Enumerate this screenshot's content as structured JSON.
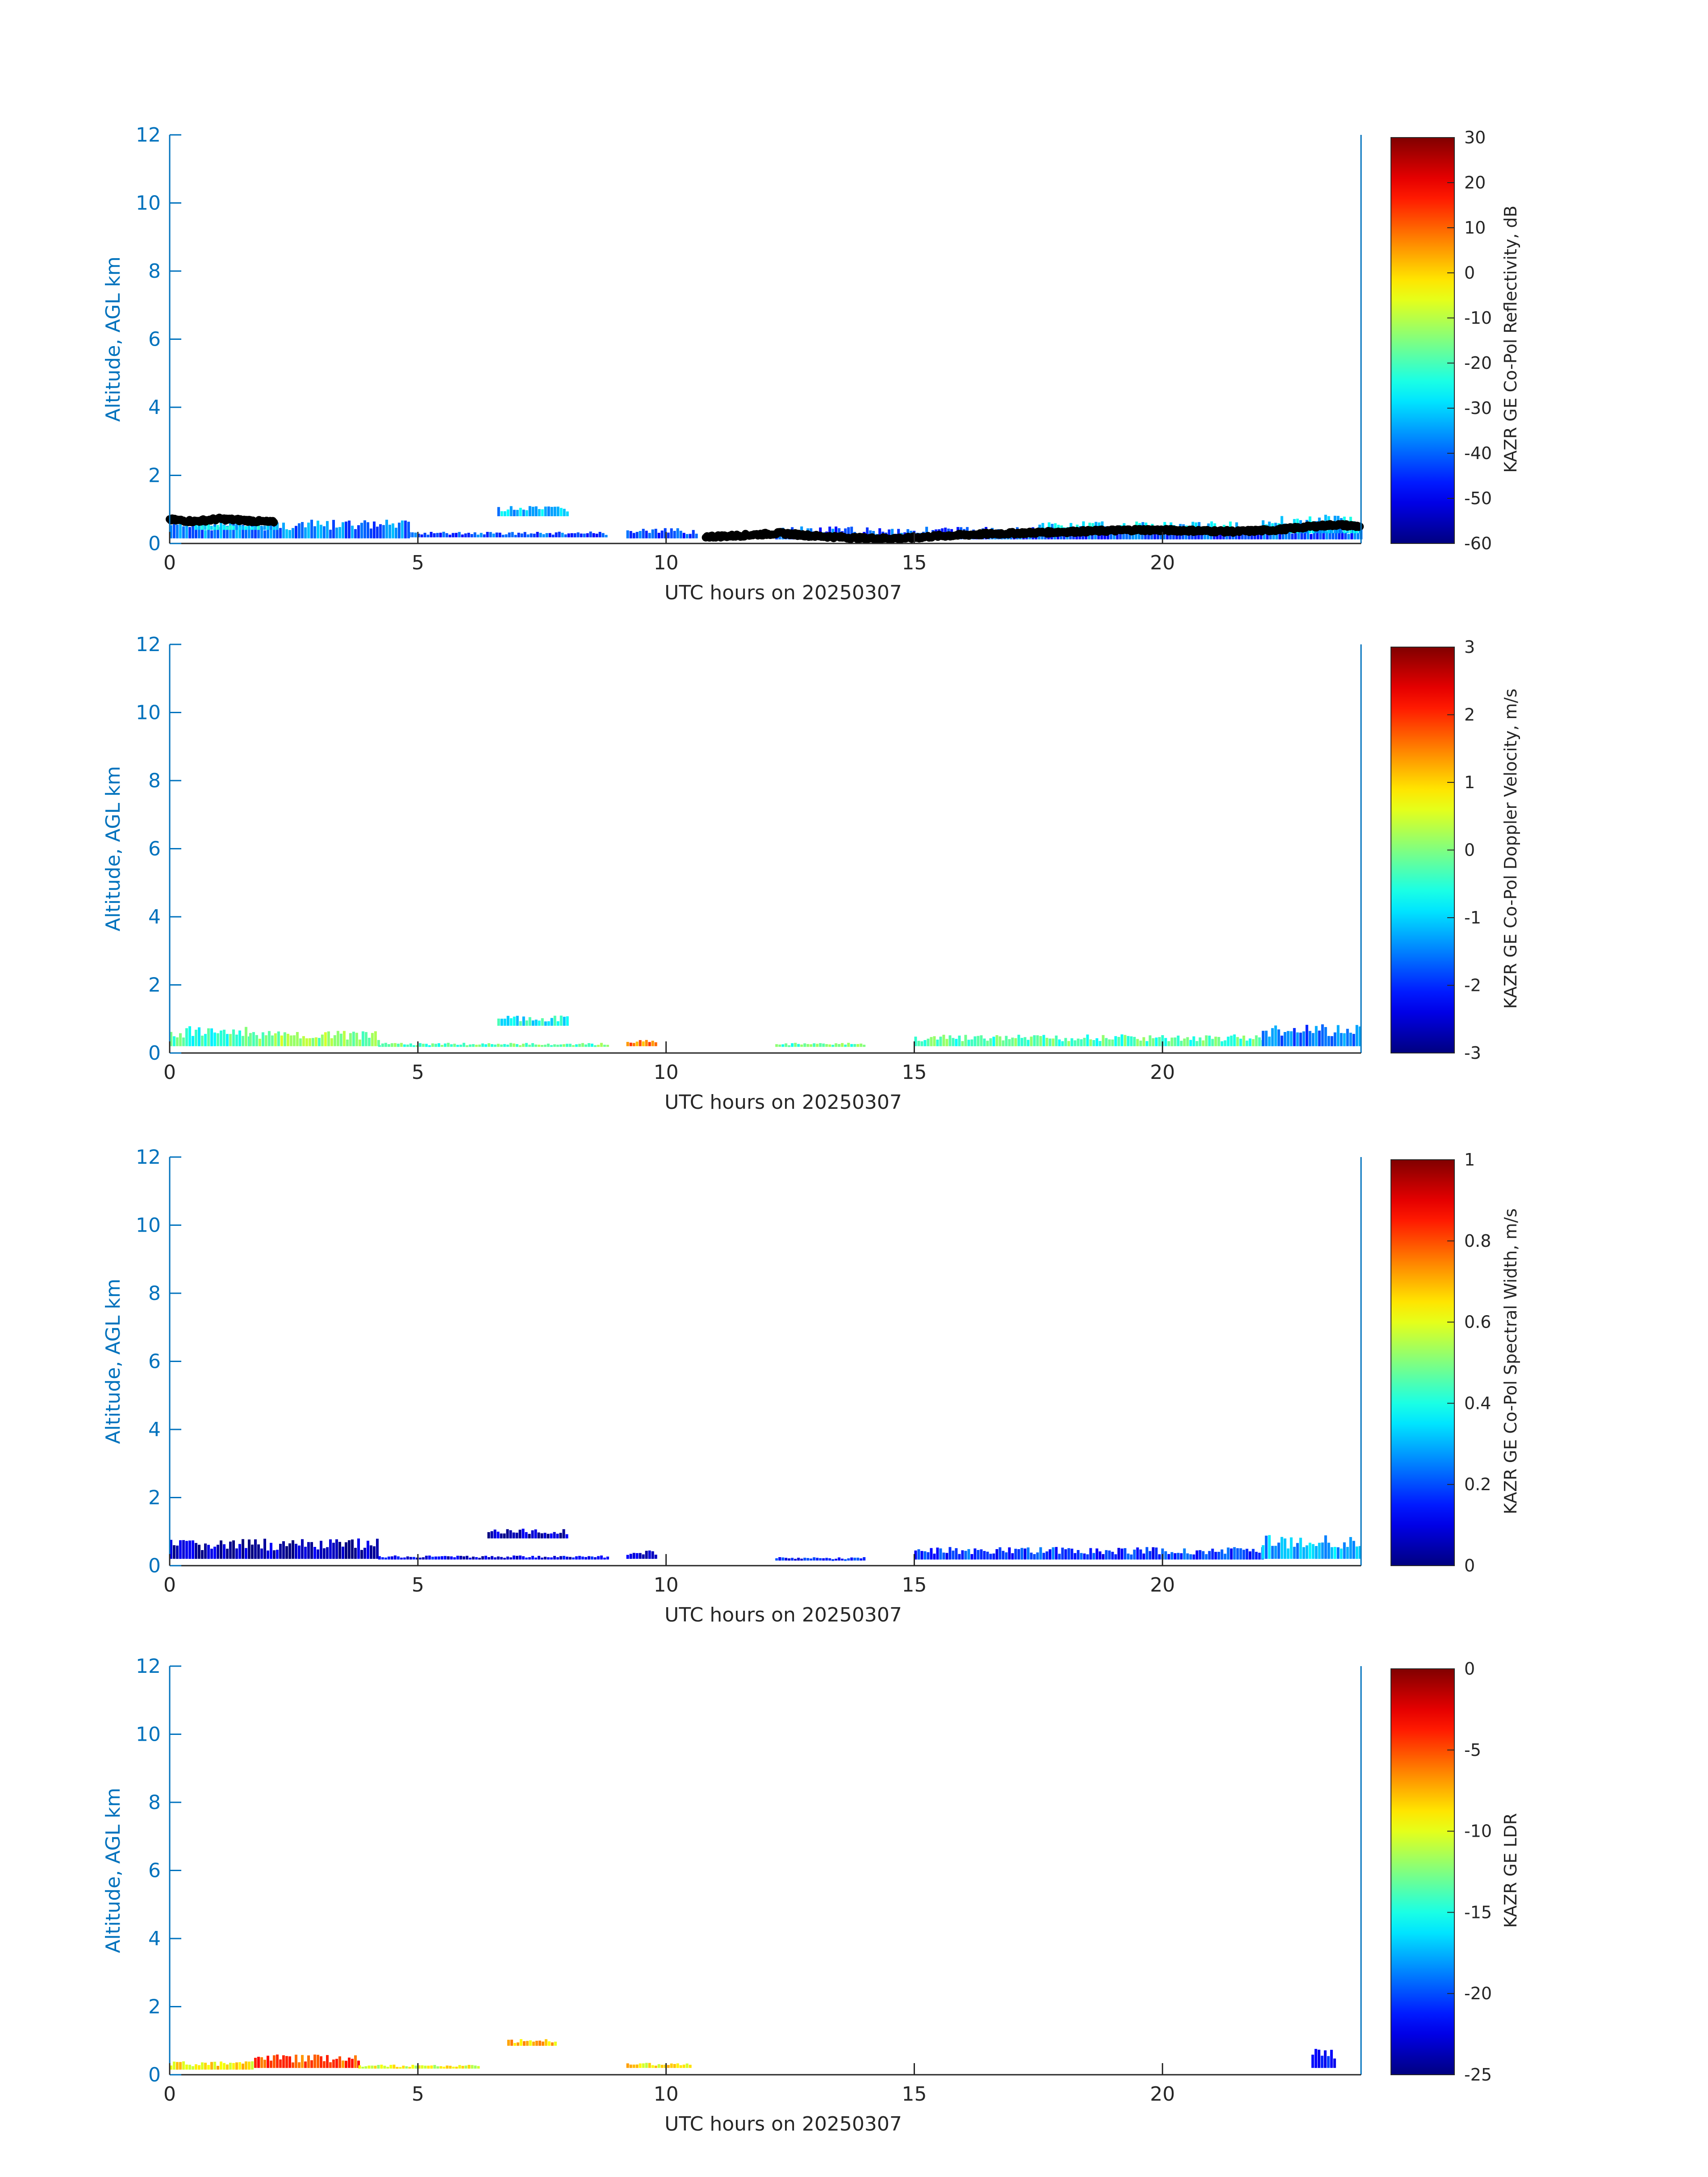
{
  "chart_data": [
    {
      "type": "heatmap",
      "xlabel": "UTC hours on 20250307",
      "ylabel": "Altitude, AGL km",
      "xlim": [
        0,
        24
      ],
      "ylim": [
        0,
        12
      ],
      "xticks": [
        0,
        5,
        10,
        15,
        20
      ],
      "yticks": [
        0,
        2,
        4,
        6,
        8,
        10,
        12
      ],
      "colorbar": {
        "label": "KAZR GE Co-Pol Reflectivity, dB",
        "range": [
          -60,
          30
        ],
        "ticks": [
          30,
          20,
          10,
          0,
          -10,
          -20,
          -30,
          -40,
          -50,
          -60
        ],
        "colormap": "jet"
      },
      "features": [
        {
          "x0": 0,
          "x1": 4.8,
          "y0": 0.15,
          "y1": 0.7,
          "value": -38
        },
        {
          "x0": 0.5,
          "x1": 2.2,
          "y0": 0.4,
          "y1": 0.6,
          "value": -30
        },
        {
          "x0": 4.8,
          "x1": 8.8,
          "y0": 0.18,
          "y1": 0.35,
          "value": -42
        },
        {
          "x0": 6.6,
          "x1": 8.0,
          "y0": 0.8,
          "y1": 1.1,
          "value": -32
        },
        {
          "x0": 9.2,
          "x1": 10.6,
          "y0": 0.15,
          "y1": 0.45,
          "value": -42
        },
        {
          "x0": 12.2,
          "x1": 24,
          "y0": 0.12,
          "y1": 0.5,
          "value": -42
        },
        {
          "x0": 17.5,
          "x1": 21.5,
          "y0": 0.3,
          "y1": 0.65,
          "value": -30
        },
        {
          "x0": 22,
          "x1": 24,
          "y0": 0.3,
          "y1": 0.85,
          "value": -30
        }
      ],
      "cloud_base_points": [
        [
          0,
          0.7
        ],
        [
          0.5,
          0.65
        ],
        [
          1,
          0.72
        ],
        [
          1.5,
          0.68
        ],
        [
          2.1,
          0.62
        ],
        [
          10.8,
          0.2
        ],
        [
          11.3,
          0.22
        ],
        [
          12.3,
          0.3
        ],
        [
          13,
          0.22
        ],
        [
          14,
          0.15
        ],
        [
          14.8,
          0.15
        ],
        [
          15.5,
          0.22
        ],
        [
          16.5,
          0.28
        ],
        [
          17.5,
          0.32
        ],
        [
          18.5,
          0.36
        ],
        [
          19.5,
          0.4
        ],
        [
          20.5,
          0.38
        ],
        [
          21.5,
          0.35
        ],
        [
          22.3,
          0.4
        ],
        [
          23,
          0.5
        ],
        [
          23.5,
          0.55
        ],
        [
          24,
          0.5
        ]
      ]
    },
    {
      "type": "heatmap",
      "xlabel": "UTC hours on 20250307",
      "ylabel": "Altitude, AGL km",
      "xlim": [
        0,
        24
      ],
      "ylim": [
        0,
        12
      ],
      "xticks": [
        0,
        5,
        10,
        15,
        20
      ],
      "yticks": [
        0,
        2,
        4,
        6,
        8,
        10,
        12
      ],
      "colorbar": {
        "label": "KAZR GE Co-Pol Doppler Velocity, m/s",
        "range": [
          -3,
          3
        ],
        "ticks": [
          3,
          2,
          1,
          0,
          -1,
          -2,
          -3
        ],
        "colormap": "jet"
      },
      "features": [
        {
          "x0": 0,
          "x1": 1.6,
          "y0": 0.2,
          "y1": 0.8,
          "value": -0.4
        },
        {
          "x0": 1.6,
          "x1": 4.2,
          "y0": 0.2,
          "y1": 0.65,
          "value": 0.1
        },
        {
          "x0": 4.2,
          "x1": 8.8,
          "y0": 0.18,
          "y1": 0.3,
          "value": -0.2
        },
        {
          "x0": 6.6,
          "x1": 8.0,
          "y0": 0.8,
          "y1": 1.1,
          "value": -0.7
        },
        {
          "x0": 9.2,
          "x1": 9.8,
          "y0": 0.2,
          "y1": 0.4,
          "value": 1.5
        },
        {
          "x0": 12.2,
          "x1": 14.0,
          "y0": 0.18,
          "y1": 0.3,
          "value": -0.2
        },
        {
          "x0": 15,
          "x1": 22,
          "y0": 0.2,
          "y1": 0.55,
          "value": -0.3
        },
        {
          "x0": 22,
          "x1": 24,
          "y0": 0.2,
          "y1": 0.85,
          "value": -1.6
        }
      ]
    },
    {
      "type": "heatmap",
      "xlabel": "UTC hours on 20250307",
      "ylabel": "Altitude, AGL km",
      "xlim": [
        0,
        24
      ],
      "ylim": [
        0,
        12
      ],
      "xticks": [
        0,
        5,
        10,
        15,
        20
      ],
      "yticks": [
        0,
        2,
        4,
        6,
        8,
        10,
        12
      ],
      "colorbar": {
        "label": "KAZR GE Co-Pol Spectral Width, m/s",
        "range": [
          0,
          1
        ],
        "ticks": [
          1,
          0.8,
          0.6,
          0.4,
          0.2,
          0
        ],
        "colormap": "jet"
      },
      "features": [
        {
          "x0": 0,
          "x1": 4.2,
          "y0": 0.2,
          "y1": 0.8,
          "value": 0.05
        },
        {
          "x0": 4.2,
          "x1": 8.8,
          "y0": 0.18,
          "y1": 0.3,
          "value": 0.1
        },
        {
          "x0": 6.4,
          "x1": 8.0,
          "y0": 0.8,
          "y1": 1.1,
          "value": 0.05
        },
        {
          "x0": 9.2,
          "x1": 9.8,
          "y0": 0.2,
          "y1": 0.45,
          "value": 0.05
        },
        {
          "x0": 12.2,
          "x1": 14.0,
          "y0": 0.15,
          "y1": 0.25,
          "value": 0.15
        },
        {
          "x0": 15,
          "x1": 22,
          "y0": 0.18,
          "y1": 0.55,
          "value": 0.18
        },
        {
          "x0": 22,
          "x1": 24,
          "y0": 0.2,
          "y1": 0.9,
          "value": 0.3
        }
      ]
    },
    {
      "type": "heatmap",
      "xlabel": "UTC hours on 20250307",
      "ylabel": "Altitude, AGL km",
      "xlim": [
        0,
        24
      ],
      "ylim": [
        0,
        12
      ],
      "xticks": [
        0,
        5,
        10,
        15,
        20
      ],
      "yticks": [
        0,
        2,
        4,
        6,
        8,
        10,
        12
      ],
      "colorbar": {
        "label": "KAZR GE LDR",
        "range": [
          -25,
          0
        ],
        "ticks": [
          0,
          -5,
          -10,
          -15,
          -20,
          -25
        ],
        "colormap": "jet"
      },
      "features": [
        {
          "x0": 0,
          "x1": 1.7,
          "y0": 0.15,
          "y1": 0.4,
          "value": -9
        },
        {
          "x0": 1.7,
          "x1": 3.8,
          "y0": 0.2,
          "y1": 0.6,
          "value": -5
        },
        {
          "x0": 3.8,
          "x1": 6.2,
          "y0": 0.18,
          "y1": 0.3,
          "value": -10
        },
        {
          "x0": 6.8,
          "x1": 7.8,
          "y0": 0.85,
          "y1": 1.05,
          "value": -8
        },
        {
          "x0": 9.2,
          "x1": 10.5,
          "y0": 0.2,
          "y1": 0.35,
          "value": -9
        },
        {
          "x0": 23.0,
          "x1": 23.5,
          "y0": 0.2,
          "y1": 0.8,
          "value": -21
        }
      ]
    }
  ]
}
